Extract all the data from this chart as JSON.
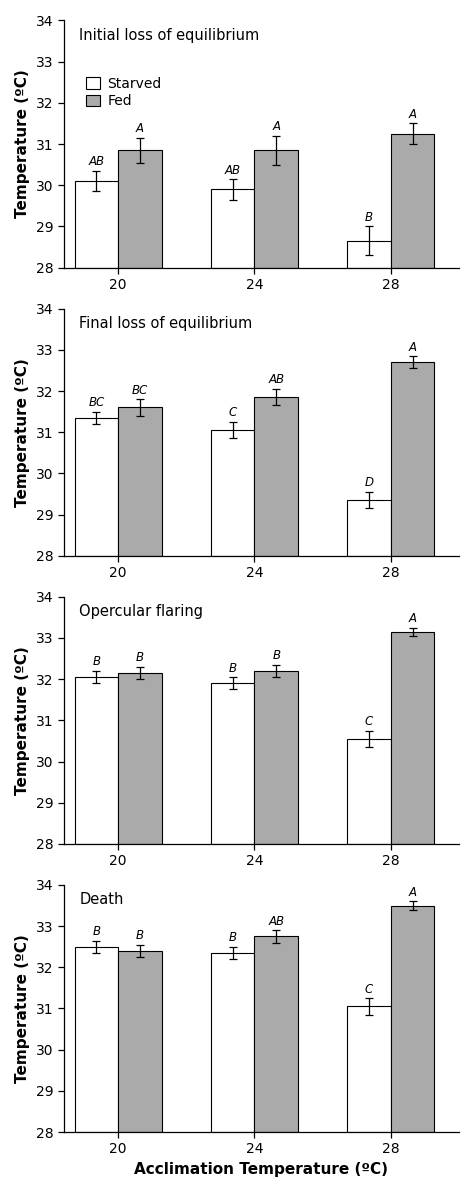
{
  "panels": [
    {
      "title": "Initial loss of equilibrium",
      "show_legend": true,
      "ylim": [
        28,
        34
      ],
      "yticks": [
        28,
        29,
        30,
        31,
        32,
        33,
        34
      ],
      "starved_means": [
        30.1,
        29.9,
        28.65
      ],
      "starved_errors": [
        0.25,
        0.25,
        0.35
      ],
      "fed_means": [
        30.85,
        30.85,
        31.25
      ],
      "fed_errors": [
        0.3,
        0.35,
        0.25
      ],
      "starved_labels": [
        "AB",
        "AB",
        "B"
      ],
      "fed_labels": [
        "A",
        "A",
        "A"
      ]
    },
    {
      "title": "Final loss of equilibrium",
      "show_legend": false,
      "ylim": [
        28,
        34
      ],
      "yticks": [
        28,
        29,
        30,
        31,
        32,
        33,
        34
      ],
      "starved_means": [
        31.35,
        31.05,
        29.35
      ],
      "starved_errors": [
        0.15,
        0.2,
        0.2
      ],
      "fed_means": [
        31.6,
        31.85,
        32.7
      ],
      "fed_errors": [
        0.2,
        0.2,
        0.15
      ],
      "starved_labels": [
        "BC",
        "C",
        "D"
      ],
      "fed_labels": [
        "BC",
        "AB",
        "A"
      ]
    },
    {
      "title": "Opercular flaring",
      "show_legend": false,
      "ylim": [
        28,
        34
      ],
      "yticks": [
        28,
        29,
        30,
        31,
        32,
        33,
        34
      ],
      "starved_means": [
        32.05,
        31.9,
        30.55
      ],
      "starved_errors": [
        0.15,
        0.15,
        0.2
      ],
      "fed_means": [
        32.15,
        32.2,
        33.15
      ],
      "fed_errors": [
        0.15,
        0.15,
        0.1
      ],
      "starved_labels": [
        "B",
        "B",
        "C"
      ],
      "fed_labels": [
        "B",
        "B",
        "A"
      ]
    },
    {
      "title": "Death",
      "show_legend": false,
      "ylim": [
        28,
        34
      ],
      "yticks": [
        28,
        29,
        30,
        31,
        32,
        33,
        34
      ],
      "starved_means": [
        32.5,
        32.35,
        31.05
      ],
      "starved_errors": [
        0.15,
        0.15,
        0.2
      ],
      "fed_means": [
        32.4,
        32.75,
        33.5
      ],
      "fed_errors": [
        0.15,
        0.15,
        0.1
      ],
      "starved_labels": [
        "B",
        "B",
        "C"
      ],
      "fed_labels": [
        "B",
        "AB",
        "A"
      ]
    }
  ],
  "acclim_temps": [
    20,
    24,
    28
  ],
  "bar_width": 0.32,
  "ybase": 28,
  "starved_color": "#ffffff",
  "fed_color": "#aaaaaa",
  "edge_color": "#000000",
  "xlabel": "Acclimation Temperature (ºC)",
  "ylabel": "Temperature (ºC)",
  "label_fontsize": 11,
  "tick_fontsize": 10,
  "title_fontsize": 10.5,
  "annot_fontsize": 8.5,
  "legend_fontsize": 10
}
